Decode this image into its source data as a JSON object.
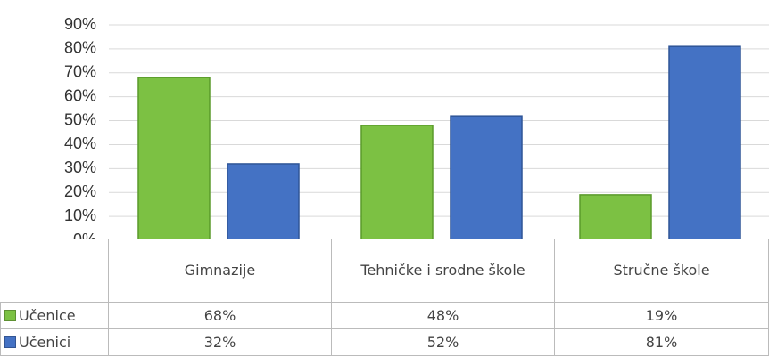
{
  "chart_data": {
    "type": "bar",
    "categories": [
      "Gimnazije",
      "Tehničke i srodne škole",
      "Stručne škole"
    ],
    "series": [
      {
        "name": "Učenice",
        "color": "#7cc143",
        "values": [
          68,
          48,
          19
        ],
        "value_labels": [
          "68%",
          "48%",
          "19%"
        ]
      },
      {
        "name": "Učenici",
        "color": "#4472c4",
        "values": [
          32,
          52,
          81
        ],
        "value_labels": [
          "32%",
          "52%",
          "81%"
        ]
      }
    ],
    "ylim": [
      0,
      90
    ],
    "yticks": [
      {
        "value": 0,
        "label": "0%"
      },
      {
        "value": 10,
        "label": "10%"
      },
      {
        "value": 20,
        "label": "20%"
      },
      {
        "value": 30,
        "label": "30%"
      },
      {
        "value": 40,
        "label": "40%"
      },
      {
        "value": 50,
        "label": "50%"
      },
      {
        "value": 60,
        "label": "60%"
      },
      {
        "value": 70,
        "label": "70%"
      },
      {
        "value": 80,
        "label": "80%"
      },
      {
        "value": 90,
        "label": "90%"
      }
    ],
    "grid": true
  }
}
